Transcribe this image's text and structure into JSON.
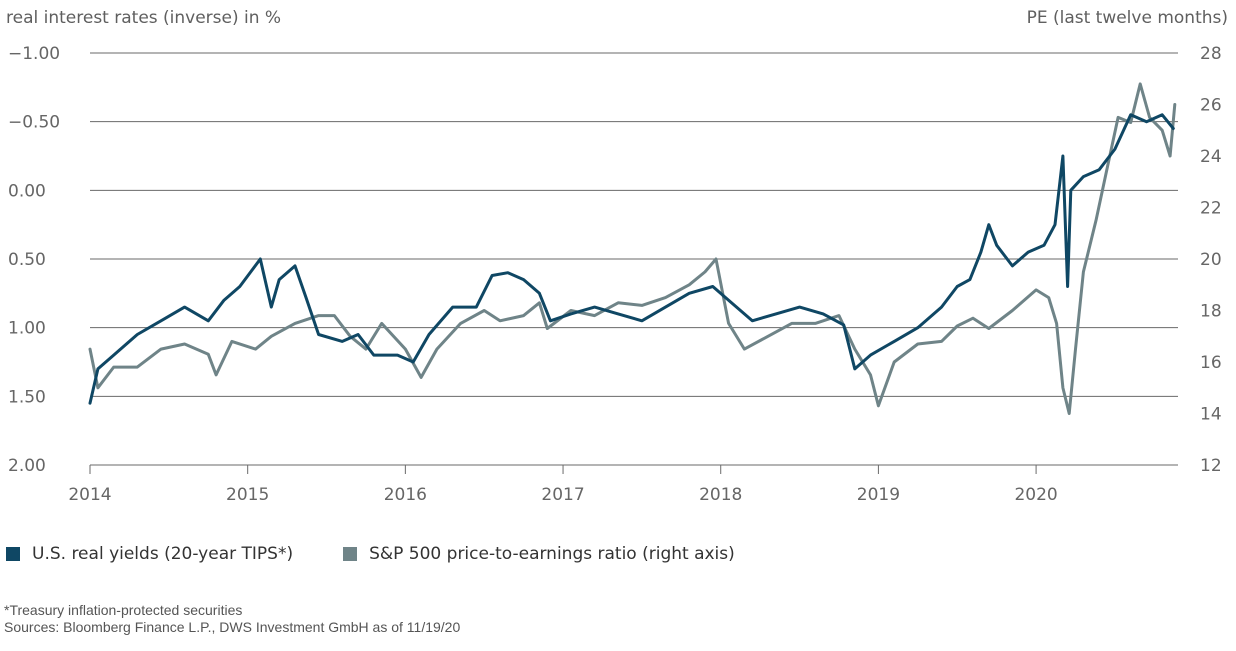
{
  "chart_data": {
    "type": "line",
    "title": "",
    "left_axis_title": "real interest rates (inverse) in %",
    "right_axis_title": "PE (last twelve months)",
    "left_axis": {
      "inverted": true,
      "ylim": [
        -1.0,
        2.0
      ],
      "ticks": [
        "-1.00",
        "-0.50",
        "0.00",
        "0.50",
        "1.00",
        "1.50",
        "2.00"
      ]
    },
    "right_axis": {
      "ylim": [
        12,
        28
      ],
      "ticks": [
        "28",
        "26",
        "24",
        "22",
        "20",
        "18",
        "16",
        "14",
        "12"
      ]
    },
    "x_ticks": [
      "2014",
      "2015",
      "2016",
      "2017",
      "2018",
      "2019",
      "2020"
    ],
    "xlim": [
      2014.0,
      2020.9
    ],
    "grid": "horizontal",
    "legend_position": "bottom-left",
    "series": [
      {
        "name": "U.S. real yields (20-year TIPS*)",
        "axis": "left",
        "color": "#0f4764",
        "points": [
          [
            2014.0,
            1.55
          ],
          [
            2014.05,
            1.3
          ],
          [
            2014.15,
            1.2
          ],
          [
            2014.3,
            1.05
          ],
          [
            2014.45,
            0.95
          ],
          [
            2014.6,
            0.85
          ],
          [
            2014.75,
            0.95
          ],
          [
            2014.85,
            0.8
          ],
          [
            2014.95,
            0.7
          ],
          [
            2015.08,
            0.5
          ],
          [
            2015.15,
            0.85
          ],
          [
            2015.2,
            0.65
          ],
          [
            2015.3,
            0.55
          ],
          [
            2015.37,
            0.78
          ],
          [
            2015.45,
            1.05
          ],
          [
            2015.6,
            1.1
          ],
          [
            2015.7,
            1.05
          ],
          [
            2015.8,
            1.2
          ],
          [
            2015.95,
            1.2
          ],
          [
            2016.05,
            1.25
          ],
          [
            2016.15,
            1.05
          ],
          [
            2016.3,
            0.85
          ],
          [
            2016.45,
            0.85
          ],
          [
            2016.55,
            0.62
          ],
          [
            2016.65,
            0.6
          ],
          [
            2016.75,
            0.65
          ],
          [
            2016.85,
            0.75
          ],
          [
            2016.92,
            0.95
          ],
          [
            2017.05,
            0.9
          ],
          [
            2017.2,
            0.85
          ],
          [
            2017.35,
            0.9
          ],
          [
            2017.5,
            0.95
          ],
          [
            2017.65,
            0.85
          ],
          [
            2017.8,
            0.75
          ],
          [
            2017.95,
            0.7
          ],
          [
            2018.05,
            0.8
          ],
          [
            2018.2,
            0.95
          ],
          [
            2018.35,
            0.9
          ],
          [
            2018.5,
            0.85
          ],
          [
            2018.65,
            0.9
          ],
          [
            2018.78,
            0.98
          ],
          [
            2018.85,
            1.3
          ],
          [
            2018.95,
            1.2
          ],
          [
            2019.1,
            1.1
          ],
          [
            2019.25,
            1.0
          ],
          [
            2019.4,
            0.85
          ],
          [
            2019.5,
            0.7
          ],
          [
            2019.58,
            0.65
          ],
          [
            2019.65,
            0.45
          ],
          [
            2019.7,
            0.25
          ],
          [
            2019.75,
            0.4
          ],
          [
            2019.85,
            0.55
          ],
          [
            2019.95,
            0.45
          ],
          [
            2020.05,
            0.4
          ],
          [
            2020.12,
            0.25
          ],
          [
            2020.17,
            -0.25
          ],
          [
            2020.2,
            0.7
          ],
          [
            2020.22,
            0.0
          ],
          [
            2020.3,
            -0.1
          ],
          [
            2020.4,
            -0.15
          ],
          [
            2020.5,
            -0.3
          ],
          [
            2020.6,
            -0.55
          ],
          [
            2020.7,
            -0.5
          ],
          [
            2020.8,
            -0.55
          ],
          [
            2020.87,
            -0.45
          ]
        ]
      },
      {
        "name": "S&P 500 price-to-earnings ratio (right axis)",
        "axis": "right",
        "color": "#6f8488",
        "points": [
          [
            2014.0,
            16.5
          ],
          [
            2014.05,
            15.0
          ],
          [
            2014.15,
            15.8
          ],
          [
            2014.3,
            15.8
          ],
          [
            2014.45,
            16.5
          ],
          [
            2014.6,
            16.7
          ],
          [
            2014.75,
            16.3
          ],
          [
            2014.8,
            15.5
          ],
          [
            2014.9,
            16.8
          ],
          [
            2015.05,
            16.5
          ],
          [
            2015.15,
            17.0
          ],
          [
            2015.3,
            17.5
          ],
          [
            2015.45,
            17.8
          ],
          [
            2015.55,
            17.8
          ],
          [
            2015.65,
            17.0
          ],
          [
            2015.75,
            16.5
          ],
          [
            2015.85,
            17.5
          ],
          [
            2016.0,
            16.5
          ],
          [
            2016.1,
            15.4
          ],
          [
            2016.2,
            16.5
          ],
          [
            2016.35,
            17.5
          ],
          [
            2016.5,
            18.0
          ],
          [
            2016.6,
            17.6
          ],
          [
            2016.75,
            17.8
          ],
          [
            2016.85,
            18.3
          ],
          [
            2016.9,
            17.3
          ],
          [
            2017.05,
            18.0
          ],
          [
            2017.2,
            17.8
          ],
          [
            2017.35,
            18.3
          ],
          [
            2017.5,
            18.2
          ],
          [
            2017.65,
            18.5
          ],
          [
            2017.8,
            19.0
          ],
          [
            2017.9,
            19.5
          ],
          [
            2017.97,
            20.0
          ],
          [
            2018.05,
            17.5
          ],
          [
            2018.15,
            16.5
          ],
          [
            2018.3,
            17.0
          ],
          [
            2018.45,
            17.5
          ],
          [
            2018.6,
            17.5
          ],
          [
            2018.75,
            17.8
          ],
          [
            2018.85,
            16.5
          ],
          [
            2018.95,
            15.5
          ],
          [
            2019.0,
            14.3
          ],
          [
            2019.1,
            16.0
          ],
          [
            2019.25,
            16.7
          ],
          [
            2019.4,
            16.8
          ],
          [
            2019.5,
            17.4
          ],
          [
            2019.6,
            17.7
          ],
          [
            2019.7,
            17.3
          ],
          [
            2019.85,
            18.0
          ],
          [
            2020.0,
            18.8
          ],
          [
            2020.08,
            18.5
          ],
          [
            2020.13,
            17.5
          ],
          [
            2020.17,
            15.0
          ],
          [
            2020.21,
            14.0
          ],
          [
            2020.25,
            16.5
          ],
          [
            2020.3,
            19.5
          ],
          [
            2020.38,
            21.5
          ],
          [
            2020.45,
            23.5
          ],
          [
            2020.52,
            25.5
          ],
          [
            2020.6,
            25.3
          ],
          [
            2020.66,
            26.8
          ],
          [
            2020.72,
            25.5
          ],
          [
            2020.8,
            25.0
          ],
          [
            2020.85,
            24.0
          ],
          [
            2020.88,
            26.0
          ]
        ]
      }
    ]
  },
  "notes": {
    "footnote": "*Treasury inflation-protected securities",
    "sources": "Sources: Bloomberg Finance L.P., DWS Investment GmbH as of 11/19/20"
  }
}
